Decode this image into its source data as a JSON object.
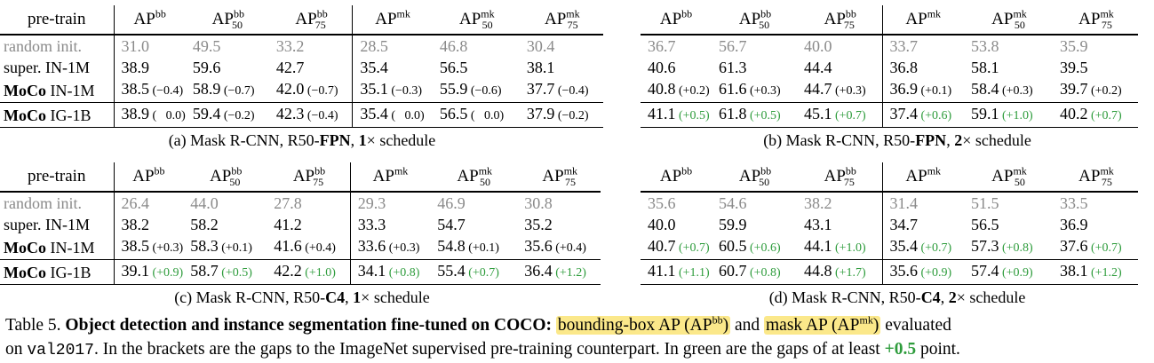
{
  "headers": {
    "pretrain": "pre-train",
    "ap": "AP",
    "bb": "bb",
    "mk": "mk",
    "s50": "50",
    "s75": "75"
  },
  "panels": [
    {
      "caption": {
        "prefix": "(a) Mask R-CNN, R50-",
        "arch": "FPN",
        "mid": ", ",
        "sched": "1",
        "suffix": "× schedule"
      },
      "rows": [
        {
          "label": "random init.",
          "cells": [
            {
              "v": "31.0",
              "g": ""
            },
            {
              "v": "49.5",
              "g": ""
            },
            {
              "v": "33.2",
              "g": ""
            },
            {
              "v": "28.5",
              "g": ""
            },
            {
              "v": "46.8",
              "g": ""
            },
            {
              "v": "30.4",
              "g": ""
            }
          ]
        },
        {
          "label": "super.  IN-1M",
          "cells": [
            {
              "v": "38.9",
              "g": ""
            },
            {
              "v": "59.6",
              "g": ""
            },
            {
              "v": "42.7",
              "g": ""
            },
            {
              "v": "35.4",
              "g": ""
            },
            {
              "v": "56.5",
              "g": ""
            },
            {
              "v": "38.1",
              "g": ""
            }
          ]
        },
        {
          "label": "IN-1M",
          "moco": true,
          "cells": [
            {
              "v": "38.5",
              "g": "(−0.4)"
            },
            {
              "v": "58.9",
              "g": "(−0.7)"
            },
            {
              "v": "42.0",
              "g": "(−0.7)"
            },
            {
              "v": "35.1",
              "g": "(−0.3)"
            },
            {
              "v": "55.9",
              "g": "(−0.6)"
            },
            {
              "v": "37.7",
              "g": "(−0.4)"
            }
          ]
        },
        {
          "label": "IG-1B",
          "moco": true,
          "cells": [
            {
              "v": "38.9",
              "g": "(   0.0)"
            },
            {
              "v": "59.4",
              "g": "(−0.2)"
            },
            {
              "v": "42.3",
              "g": "(−0.4)"
            },
            {
              "v": "35.4",
              "g": "(   0.0)"
            },
            {
              "v": "56.5",
              "g": "(   0.0)"
            },
            {
              "v": "37.9",
              "g": "(−0.2)"
            }
          ]
        }
      ]
    },
    {
      "caption": {
        "prefix": "(b) Mask R-CNN, R50-",
        "arch": "FPN",
        "mid": ", ",
        "sched": "2",
        "suffix": "× schedule"
      },
      "rows": [
        {
          "cells": [
            {
              "v": "36.7",
              "g": ""
            },
            {
              "v": "56.7",
              "g": ""
            },
            {
              "v": "40.0",
              "g": ""
            },
            {
              "v": "33.7",
              "g": ""
            },
            {
              "v": "53.8",
              "g": ""
            },
            {
              "v": "35.9",
              "g": ""
            }
          ]
        },
        {
          "cells": [
            {
              "v": "40.6",
              "g": ""
            },
            {
              "v": "61.3",
              "g": ""
            },
            {
              "v": "44.4",
              "g": ""
            },
            {
              "v": "36.8",
              "g": ""
            },
            {
              "v": "58.1",
              "g": ""
            },
            {
              "v": "39.5",
              "g": ""
            }
          ]
        },
        {
          "cells": [
            {
              "v": "40.8",
              "g": "(+0.2)"
            },
            {
              "v": "61.6",
              "g": "(+0.3)"
            },
            {
              "v": "44.7",
              "g": "(+0.3)"
            },
            {
              "v": "36.9",
              "g": "(+0.1)"
            },
            {
              "v": "58.4",
              "g": "(+0.3)"
            },
            {
              "v": "39.7",
              "g": "(+0.2)"
            }
          ]
        },
        {
          "cells": [
            {
              "v": "41.1",
              "g": "(+0.5)",
              "green": true
            },
            {
              "v": "61.8",
              "g": "(+0.5)",
              "green": true
            },
            {
              "v": "45.1",
              "g": "(+0.7)",
              "green": true
            },
            {
              "v": "37.4",
              "g": "(+0.6)",
              "green": true
            },
            {
              "v": "59.1",
              "g": "(+1.0)",
              "green": true
            },
            {
              "v": "40.2",
              "g": "(+0.7)",
              "green": true
            }
          ]
        }
      ]
    },
    {
      "caption": {
        "prefix": "(c) Mask R-CNN, R50-",
        "arch": "C4",
        "mid": ", ",
        "sched": "1",
        "suffix": "× schedule"
      },
      "rows": [
        {
          "label": "random init.",
          "cells": [
            {
              "v": "26.4",
              "g": ""
            },
            {
              "v": "44.0",
              "g": ""
            },
            {
              "v": "27.8",
              "g": ""
            },
            {
              "v": "29.3",
              "g": ""
            },
            {
              "v": "46.9",
              "g": ""
            },
            {
              "v": "30.8",
              "g": ""
            }
          ]
        },
        {
          "label": "super.  IN-1M",
          "cells": [
            {
              "v": "38.2",
              "g": ""
            },
            {
              "v": "58.2",
              "g": ""
            },
            {
              "v": "41.2",
              "g": ""
            },
            {
              "v": "33.3",
              "g": ""
            },
            {
              "v": "54.7",
              "g": ""
            },
            {
              "v": "35.2",
              "g": ""
            }
          ]
        },
        {
          "label": "IN-1M",
          "moco": true,
          "cells": [
            {
              "v": "38.5",
              "g": "(+0.3)"
            },
            {
              "v": "58.3",
              "g": "(+0.1)"
            },
            {
              "v": "41.6",
              "g": "(+0.4)"
            },
            {
              "v": "33.6",
              "g": "(+0.3)"
            },
            {
              "v": "54.8",
              "g": "(+0.1)"
            },
            {
              "v": "35.6",
              "g": "(+0.4)"
            }
          ]
        },
        {
          "label": "IG-1B",
          "moco": true,
          "cells": [
            {
              "v": "39.1",
              "g": "(+0.9)",
              "green": true
            },
            {
              "v": "58.7",
              "g": "(+0.5)",
              "green": true
            },
            {
              "v": "42.2",
              "g": "(+1.0)",
              "green": true
            },
            {
              "v": "34.1",
              "g": "(+0.8)",
              "green": true
            },
            {
              "v": "55.4",
              "g": "(+0.7)",
              "green": true
            },
            {
              "v": "36.4",
              "g": "(+1.2)",
              "green": true
            }
          ]
        }
      ]
    },
    {
      "caption": {
        "prefix": "(d) Mask R-CNN, R50-",
        "arch": "C4",
        "mid": ", ",
        "sched": "2",
        "suffix": "× schedule"
      },
      "rows": [
        {
          "cells": [
            {
              "v": "35.6",
              "g": ""
            },
            {
              "v": "54.6",
              "g": ""
            },
            {
              "v": "38.2",
              "g": ""
            },
            {
              "v": "31.4",
              "g": ""
            },
            {
              "v": "51.5",
              "g": ""
            },
            {
              "v": "33.5",
              "g": ""
            }
          ]
        },
        {
          "cells": [
            {
              "v": "40.0",
              "g": ""
            },
            {
              "v": "59.9",
              "g": ""
            },
            {
              "v": "43.1",
              "g": ""
            },
            {
              "v": "34.7",
              "g": ""
            },
            {
              "v": "56.5",
              "g": ""
            },
            {
              "v": "36.9",
              "g": ""
            }
          ]
        },
        {
          "cells": [
            {
              "v": "40.7",
              "g": "(+0.7)",
              "green": true
            },
            {
              "v": "60.5",
              "g": "(+0.6)",
              "green": true
            },
            {
              "v": "44.1",
              "g": "(+1.0)",
              "green": true
            },
            {
              "v": "35.4",
              "g": "(+0.7)",
              "green": true
            },
            {
              "v": "57.3",
              "g": "(+0.8)",
              "green": true
            },
            {
              "v": "37.6",
              "g": "(+0.7)",
              "green": true
            }
          ]
        },
        {
          "cells": [
            {
              "v": "41.1",
              "g": "(+1.1)",
              "green": true
            },
            {
              "v": "60.7",
              "g": "(+0.8)",
              "green": true
            },
            {
              "v": "44.8",
              "g": "(+1.7)",
              "green": true
            },
            {
              "v": "35.6",
              "g": "(+0.9)",
              "green": true
            },
            {
              "v": "57.4",
              "g": "(+0.9)",
              "green": true
            },
            {
              "v": "38.1",
              "g": "(+1.2)",
              "green": true
            }
          ]
        }
      ]
    }
  ],
  "moco_label": "MoCo",
  "note": {
    "table_num": "Table 5.",
    "title": "Object detection and instance segmentation fine-tuned on COCO",
    "colon": ":",
    "hl1_a": "bounding-box AP (AP",
    "hl1_sup": "bb",
    "hl1_b": ")",
    "and": "and",
    "hl2_a": "mask AP (AP",
    "hl2_sup": "mk",
    "hl2_b": ")",
    "evaluated": "evaluated",
    "on": "on",
    "split": "val2017",
    "rest1": ". In the brackets are the gaps to the ImageNet supervised pre-training counterpart. In green are the gaps of at least",
    "green_val": "+0.5",
    "rest2": "point."
  }
}
